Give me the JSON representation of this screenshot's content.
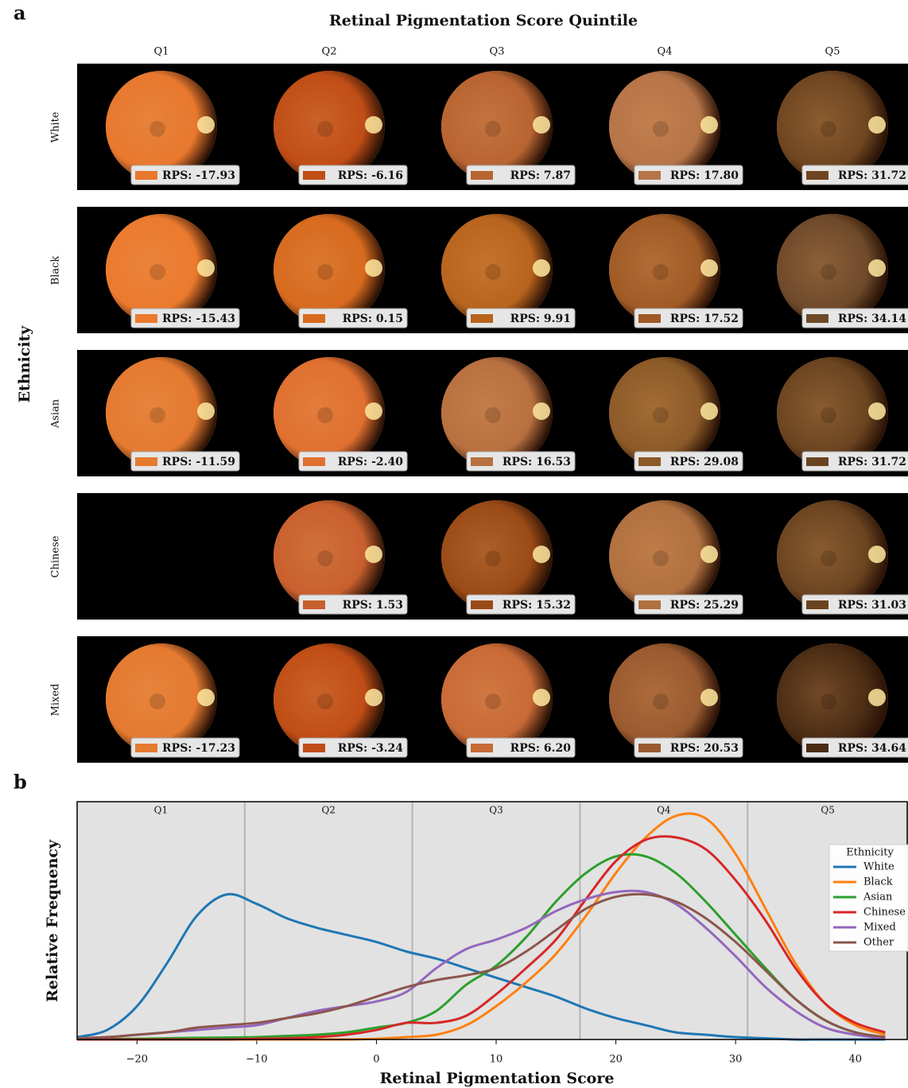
{
  "panel_a": {
    "label": "a",
    "title": "Retinal Pigmentation Score Quintile",
    "columns": [
      "Q1",
      "Q2",
      "Q3",
      "Q4",
      "Q5"
    ],
    "row_axis_label": "Ethnicity",
    "rows": [
      {
        "name": "White",
        "cells": [
          {
            "label": "RPS: -17.93",
            "color": "#e8782e"
          },
          {
            "label": "RPS: -6.16",
            "color": "#c04d16"
          },
          {
            "label": "RPS: 7.87",
            "color": "#b86432"
          },
          {
            "label": "RPS: 17.80",
            "color": "#b67448"
          },
          {
            "label": "RPS: 31.72",
            "color": "#6e4520"
          }
        ]
      },
      {
        "name": "Black",
        "cells": [
          {
            "label": "RPS: -15.43",
            "color": "#eb7a2e"
          },
          {
            "label": "RPS: 0.15",
            "color": "#d76a1e"
          },
          {
            "label": "RPS: 9.91",
            "color": "#b8641e"
          },
          {
            "label": "RPS: 17.52",
            "color": "#a05a26"
          },
          {
            "label": "RPS: 34.14",
            "color": "#6e4a2a"
          }
        ]
      },
      {
        "name": "Asian",
        "cells": [
          {
            "label": "RPS: -11.59",
            "color": "#e57a30"
          },
          {
            "label": "RPS: -2.40",
            "color": "#e07030"
          },
          {
            "label": "RPS: 16.53",
            "color": "#b87040"
          },
          {
            "label": "RPS: 29.08",
            "color": "#8c5a28"
          },
          {
            "label": "RPS: 31.72",
            "color": "#6a4420"
          }
        ]
      },
      {
        "name": "Chinese",
        "cells": [
          null,
          {
            "label": "RPS: 1.53",
            "color": "#c8602e"
          },
          {
            "label": "RPS: 15.32",
            "color": "#9a4a16"
          },
          {
            "label": "RPS: 25.29",
            "color": "#b07040"
          },
          {
            "label": "RPS: 31.03",
            "color": "#6a4420"
          }
        ]
      },
      {
        "name": "Mixed",
        "cells": [
          {
            "label": "RPS: -17.23",
            "color": "#e57a30"
          },
          {
            "label": "RPS: -3.24",
            "color": "#c04d16"
          },
          {
            "label": "RPS: 6.20",
            "color": "#c86a36"
          },
          {
            "label": "RPS: 20.53",
            "color": "#9a5a30"
          },
          {
            "label": "RPS: 34.64",
            "color": "#4a2c14"
          }
        ]
      }
    ]
  },
  "panel_b_label": "b",
  "chart_data": {
    "type": "line",
    "xlabel": "Retinal Pigmentation Score",
    "ylabel": "Relative Frequency",
    "xlim": [
      -25,
      44.4
    ],
    "ylim": [
      0,
      1
    ],
    "xticks": [
      {
        "value": -20,
        "label": "−20"
      },
      {
        "value": -10,
        "label": "−10"
      },
      0,
      10,
      20,
      30,
      40
    ],
    "bands": {
      "boundaries": [
        -11.0,
        3.0,
        17.0,
        31.0
      ],
      "labels": [
        "Q1",
        "Q2",
        "Q3",
        "Q4",
        "Q5"
      ]
    },
    "legend_title": "Ethnicity",
    "legend_position": "right",
    "x": [
      -25,
      -22.5,
      -20,
      -17.5,
      -15,
      -12.5,
      -10,
      -7.5,
      -5,
      -2.5,
      0,
      2.5,
      5,
      7.5,
      10,
      12.5,
      15,
      17.5,
      20,
      22.5,
      25,
      27.5,
      30,
      32.5,
      35,
      37.5,
      40,
      42.5
    ],
    "series": [
      {
        "name": "White",
        "color": "#1f77b4",
        "values": [
          0.01,
          0.04,
          0.14,
          0.32,
          0.52,
          0.61,
          0.57,
          0.51,
          0.47,
          0.44,
          0.41,
          0.37,
          0.34,
          0.3,
          0.26,
          0.22,
          0.18,
          0.13,
          0.09,
          0.06,
          0.03,
          0.02,
          0.01,
          0.005,
          0,
          0,
          0,
          0
        ]
      },
      {
        "name": "Black",
        "color": "#ff7f0e",
        "values": [
          0,
          0,
          0,
          0,
          0,
          0,
          0,
          0,
          0,
          0,
          0.003,
          0.01,
          0.02,
          0.06,
          0.14,
          0.24,
          0.36,
          0.52,
          0.7,
          0.85,
          0.94,
          0.93,
          0.78,
          0.55,
          0.32,
          0.15,
          0.06,
          0.02
        ]
      },
      {
        "name": "Asian",
        "color": "#2ca02c",
        "values": [
          0,
          0.002,
          0.003,
          0.005,
          0.007,
          0.008,
          0.01,
          0.015,
          0.02,
          0.03,
          0.05,
          0.07,
          0.12,
          0.23,
          0.31,
          0.43,
          0.58,
          0.7,
          0.77,
          0.77,
          0.7,
          0.58,
          0.44,
          0.3,
          0.17,
          0.08,
          0.03,
          0.01
        ]
      },
      {
        "name": "Chinese",
        "color": "#d62728",
        "values": [
          0,
          0,
          0,
          0,
          0,
          0,
          0.003,
          0.005,
          0.01,
          0.02,
          0.04,
          0.07,
          0.07,
          0.1,
          0.19,
          0.3,
          0.42,
          0.59,
          0.75,
          0.84,
          0.85,
          0.8,
          0.67,
          0.5,
          0.3,
          0.15,
          0.07,
          0.03
        ]
      },
      {
        "name": "Mixed",
        "color": "#9467bd",
        "values": [
          0.005,
          0.01,
          0.02,
          0.03,
          0.04,
          0.05,
          0.06,
          0.09,
          0.12,
          0.14,
          0.16,
          0.2,
          0.3,
          0.38,
          0.42,
          0.47,
          0.54,
          0.59,
          0.62,
          0.62,
          0.57,
          0.47,
          0.35,
          0.22,
          0.12,
          0.05,
          0.02,
          0.005
        ]
      },
      {
        "name": "Other",
        "color": "#8c564b",
        "values": [
          0.005,
          0.01,
          0.02,
          0.03,
          0.05,
          0.06,
          0.07,
          0.09,
          0.11,
          0.14,
          0.18,
          0.22,
          0.25,
          0.27,
          0.3,
          0.37,
          0.46,
          0.55,
          0.6,
          0.61,
          0.58,
          0.51,
          0.41,
          0.29,
          0.17,
          0.08,
          0.03,
          0.01
        ]
      }
    ]
  }
}
